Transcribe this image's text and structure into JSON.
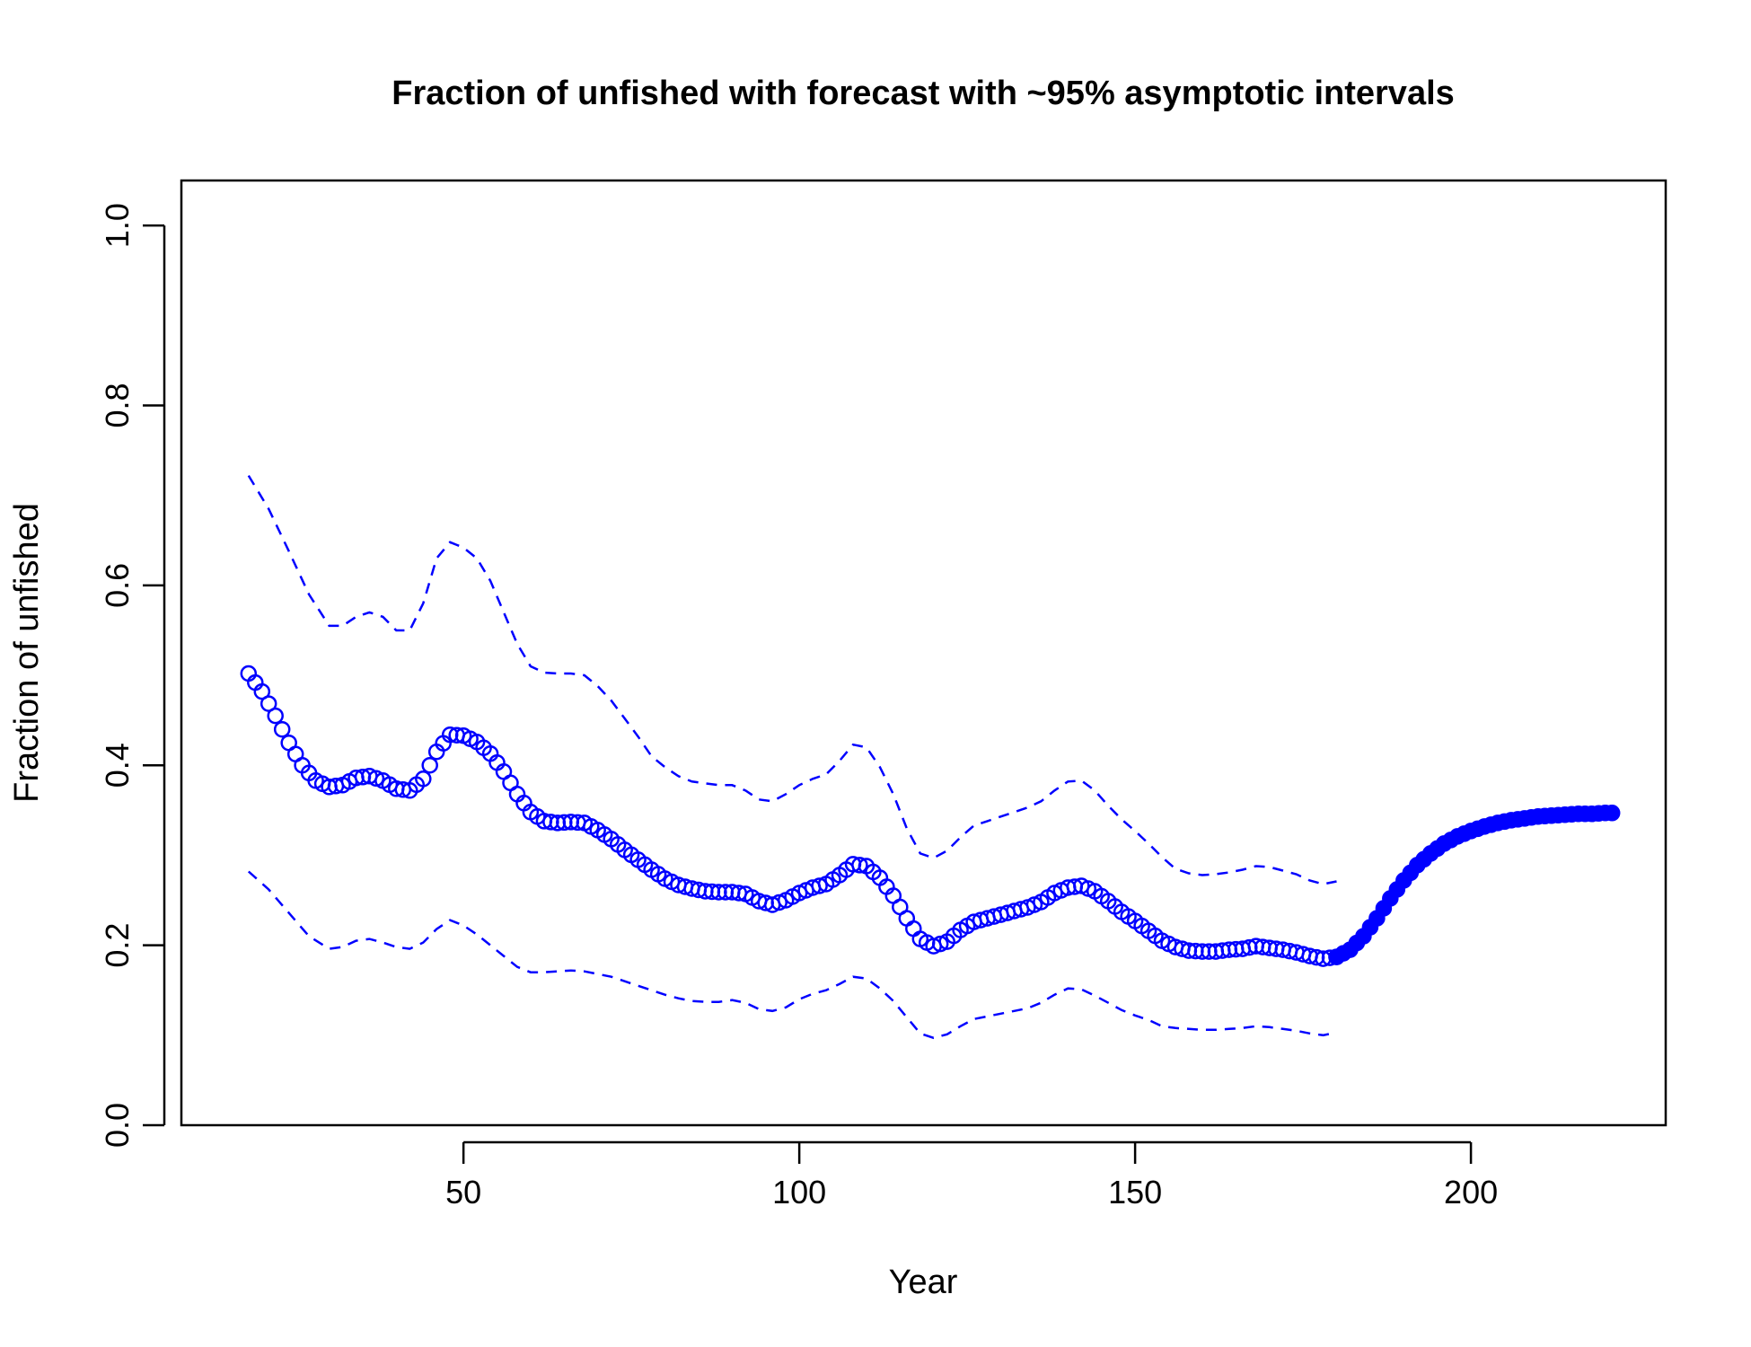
{
  "chart_data": {
    "type": "line",
    "title": "Fraction of unfished with forecast with ~95% asymptotic intervals",
    "xlabel": "Year",
    "ylabel": "Fraction of unfished",
    "xlim": [
      8,
      229
    ],
    "ylim": [
      0,
      1.05
    ],
    "x_ticks": [
      50,
      100,
      150,
      200
    ],
    "y_ticks": [
      0.0,
      0.2,
      0.4,
      0.6,
      0.8,
      1.0
    ],
    "x_tick_labels": [
      "50",
      "100",
      "150",
      "200"
    ],
    "y_tick_labels": [
      "0.0",
      "0.2",
      "0.4",
      "0.6",
      "0.8",
      "1.0"
    ],
    "grid": false,
    "legend": null,
    "colors": {
      "series": "#0000ff",
      "axis": "#000000"
    },
    "series": [
      {
        "role": "estimate",
        "style": "open-circles",
        "points": [
          [
            18,
            0.502
          ],
          [
            20,
            0.482
          ],
          [
            22,
            0.455
          ],
          [
            24,
            0.425
          ],
          [
            26,
            0.4
          ],
          [
            28,
            0.383
          ],
          [
            30,
            0.376
          ],
          [
            32,
            0.378
          ],
          [
            34,
            0.386
          ],
          [
            36,
            0.388
          ],
          [
            38,
            0.383
          ],
          [
            40,
            0.374
          ],
          [
            42,
            0.372
          ],
          [
            44,
            0.385
          ],
          [
            46,
            0.415
          ],
          [
            48,
            0.434
          ],
          [
            50,
            0.433
          ],
          [
            52,
            0.426
          ],
          [
            54,
            0.413
          ],
          [
            56,
            0.393
          ],
          [
            58,
            0.368
          ],
          [
            60,
            0.348
          ],
          [
            62,
            0.338
          ],
          [
            64,
            0.336
          ],
          [
            66,
            0.337
          ],
          [
            68,
            0.336
          ],
          [
            70,
            0.328
          ],
          [
            72,
            0.318
          ],
          [
            74,
            0.306
          ],
          [
            76,
            0.295
          ],
          [
            78,
            0.284
          ],
          [
            80,
            0.274
          ],
          [
            82,
            0.267
          ],
          [
            84,
            0.263
          ],
          [
            86,
            0.26
          ],
          [
            88,
            0.259
          ],
          [
            90,
            0.259
          ],
          [
            92,
            0.257
          ],
          [
            94,
            0.249
          ],
          [
            96,
            0.245
          ],
          [
            98,
            0.25
          ],
          [
            100,
            0.258
          ],
          [
            102,
            0.264
          ],
          [
            104,
            0.268
          ],
          [
            106,
            0.278
          ],
          [
            108,
            0.29
          ],
          [
            110,
            0.288
          ],
          [
            112,
            0.275
          ],
          [
            114,
            0.255
          ],
          [
            116,
            0.23
          ],
          [
            118,
            0.207
          ],
          [
            120,
            0.199
          ],
          [
            122,
            0.204
          ],
          [
            124,
            0.217
          ],
          [
            126,
            0.226
          ],
          [
            128,
            0.23
          ],
          [
            130,
            0.234
          ],
          [
            132,
            0.238
          ],
          [
            134,
            0.242
          ],
          [
            136,
            0.248
          ],
          [
            138,
            0.258
          ],
          [
            140,
            0.264
          ],
          [
            142,
            0.266
          ],
          [
            144,
            0.26
          ],
          [
            146,
            0.249
          ],
          [
            148,
            0.237
          ],
          [
            150,
            0.227
          ],
          [
            152,
            0.216
          ],
          [
            154,
            0.205
          ],
          [
            156,
            0.198
          ],
          [
            158,
            0.194
          ],
          [
            160,
            0.193
          ],
          [
            162,
            0.193
          ],
          [
            164,
            0.195
          ],
          [
            166,
            0.196
          ],
          [
            168,
            0.199
          ],
          [
            170,
            0.197
          ],
          [
            172,
            0.195
          ],
          [
            174,
            0.192
          ],
          [
            176,
            0.188
          ],
          [
            178,
            0.185
          ],
          [
            180,
            0.187
          ]
        ]
      },
      {
        "role": "forecast",
        "style": "filled-circles",
        "points": [
          [
            180,
            0.187
          ],
          [
            182,
            0.195
          ],
          [
            184,
            0.21
          ],
          [
            186,
            0.23
          ],
          [
            188,
            0.252
          ],
          [
            190,
            0.272
          ],
          [
            192,
            0.289
          ],
          [
            194,
            0.302
          ],
          [
            196,
            0.313
          ],
          [
            198,
            0.321
          ],
          [
            200,
            0.327
          ],
          [
            202,
            0.332
          ],
          [
            204,
            0.336
          ],
          [
            206,
            0.339
          ],
          [
            208,
            0.341
          ],
          [
            210,
            0.343
          ],
          [
            212,
            0.344
          ],
          [
            214,
            0.345
          ],
          [
            216,
            0.346
          ],
          [
            218,
            0.346
          ],
          [
            220,
            0.347
          ],
          [
            221,
            0.347
          ]
        ]
      },
      {
        "role": "upper-interval",
        "style": "dashed",
        "points": [
          [
            18,
            0.722
          ],
          [
            21,
            0.685
          ],
          [
            24,
            0.638
          ],
          [
            27,
            0.59
          ],
          [
            30,
            0.555
          ],
          [
            32,
            0.555
          ],
          [
            34,
            0.565
          ],
          [
            36,
            0.57
          ],
          [
            38,
            0.565
          ],
          [
            40,
            0.55
          ],
          [
            42,
            0.55
          ],
          [
            44,
            0.58
          ],
          [
            46,
            0.63
          ],
          [
            48,
            0.648
          ],
          [
            50,
            0.642
          ],
          [
            52,
            0.63
          ],
          [
            54,
            0.605
          ],
          [
            56,
            0.57
          ],
          [
            58,
            0.535
          ],
          [
            60,
            0.51
          ],
          [
            62,
            0.503
          ],
          [
            64,
            0.502
          ],
          [
            66,
            0.502
          ],
          [
            68,
            0.5
          ],
          [
            70,
            0.488
          ],
          [
            72,
            0.472
          ],
          [
            74,
            0.452
          ],
          [
            76,
            0.432
          ],
          [
            78,
            0.41
          ],
          [
            80,
            0.398
          ],
          [
            82,
            0.388
          ],
          [
            84,
            0.382
          ],
          [
            86,
            0.38
          ],
          [
            88,
            0.378
          ],
          [
            90,
            0.378
          ],
          [
            92,
            0.372
          ],
          [
            94,
            0.362
          ],
          [
            96,
            0.36
          ],
          [
            98,
            0.368
          ],
          [
            100,
            0.378
          ],
          [
            102,
            0.385
          ],
          [
            104,
            0.39
          ],
          [
            106,
            0.405
          ],
          [
            108,
            0.423
          ],
          [
            110,
            0.42
          ],
          [
            112,
            0.398
          ],
          [
            114,
            0.368
          ],
          [
            116,
            0.33
          ],
          [
            118,
            0.302
          ],
          [
            120,
            0.297
          ],
          [
            122,
            0.305
          ],
          [
            124,
            0.32
          ],
          [
            126,
            0.333
          ],
          [
            128,
            0.338
          ],
          [
            130,
            0.343
          ],
          [
            132,
            0.348
          ],
          [
            134,
            0.353
          ],
          [
            136,
            0.36
          ],
          [
            138,
            0.372
          ],
          [
            140,
            0.382
          ],
          [
            142,
            0.383
          ],
          [
            144,
            0.372
          ],
          [
            146,
            0.355
          ],
          [
            148,
            0.34
          ],
          [
            150,
            0.327
          ],
          [
            152,
            0.313
          ],
          [
            154,
            0.298
          ],
          [
            156,
            0.285
          ],
          [
            158,
            0.28
          ],
          [
            160,
            0.278
          ],
          [
            162,
            0.279
          ],
          [
            164,
            0.281
          ],
          [
            166,
            0.284
          ],
          [
            168,
            0.288
          ],
          [
            170,
            0.287
          ],
          [
            172,
            0.283
          ],
          [
            174,
            0.279
          ],
          [
            176,
            0.272
          ],
          [
            178,
            0.268
          ],
          [
            180,
            0.271
          ]
        ]
      },
      {
        "role": "lower-interval",
        "style": "dashed",
        "points": [
          [
            18,
            0.282
          ],
          [
            21,
            0.262
          ],
          [
            24,
            0.236
          ],
          [
            27,
            0.21
          ],
          [
            30,
            0.196
          ],
          [
            32,
            0.198
          ],
          [
            34,
            0.205
          ],
          [
            36,
            0.207
          ],
          [
            38,
            0.203
          ],
          [
            40,
            0.198
          ],
          [
            42,
            0.196
          ],
          [
            44,
            0.203
          ],
          [
            46,
            0.218
          ],
          [
            48,
            0.228
          ],
          [
            50,
            0.222
          ],
          [
            52,
            0.212
          ],
          [
            54,
            0.2
          ],
          [
            56,
            0.188
          ],
          [
            58,
            0.176
          ],
          [
            60,
            0.17
          ],
          [
            62,
            0.17
          ],
          [
            64,
            0.171
          ],
          [
            66,
            0.172
          ],
          [
            68,
            0.171
          ],
          [
            70,
            0.168
          ],
          [
            72,
            0.165
          ],
          [
            74,
            0.16
          ],
          [
            76,
            0.155
          ],
          [
            78,
            0.15
          ],
          [
            80,
            0.145
          ],
          [
            82,
            0.141
          ],
          [
            84,
            0.138
          ],
          [
            86,
            0.137
          ],
          [
            88,
            0.137
          ],
          [
            90,
            0.139
          ],
          [
            92,
            0.136
          ],
          [
            94,
            0.129
          ],
          [
            96,
            0.127
          ],
          [
            98,
            0.131
          ],
          [
            100,
            0.14
          ],
          [
            102,
            0.146
          ],
          [
            104,
            0.15
          ],
          [
            106,
            0.157
          ],
          [
            108,
            0.165
          ],
          [
            110,
            0.163
          ],
          [
            112,
            0.152
          ],
          [
            114,
            0.138
          ],
          [
            116,
            0.12
          ],
          [
            118,
            0.102
          ],
          [
            120,
            0.097
          ],
          [
            122,
            0.101
          ],
          [
            124,
            0.11
          ],
          [
            126,
            0.118
          ],
          [
            128,
            0.121
          ],
          [
            130,
            0.124
          ],
          [
            132,
            0.127
          ],
          [
            134,
            0.13
          ],
          [
            136,
            0.136
          ],
          [
            138,
            0.145
          ],
          [
            140,
            0.152
          ],
          [
            142,
            0.151
          ],
          [
            144,
            0.144
          ],
          [
            146,
            0.136
          ],
          [
            148,
            0.128
          ],
          [
            150,
            0.122
          ],
          [
            152,
            0.117
          ],
          [
            154,
            0.11
          ],
          [
            156,
            0.108
          ],
          [
            158,
            0.107
          ],
          [
            160,
            0.106
          ],
          [
            162,
            0.106
          ],
          [
            164,
            0.107
          ],
          [
            166,
            0.108
          ],
          [
            168,
            0.11
          ],
          [
            170,
            0.109
          ],
          [
            172,
            0.107
          ],
          [
            174,
            0.105
          ],
          [
            176,
            0.102
          ],
          [
            178,
            0.1
          ],
          [
            180,
            0.103
          ]
        ]
      }
    ]
  }
}
